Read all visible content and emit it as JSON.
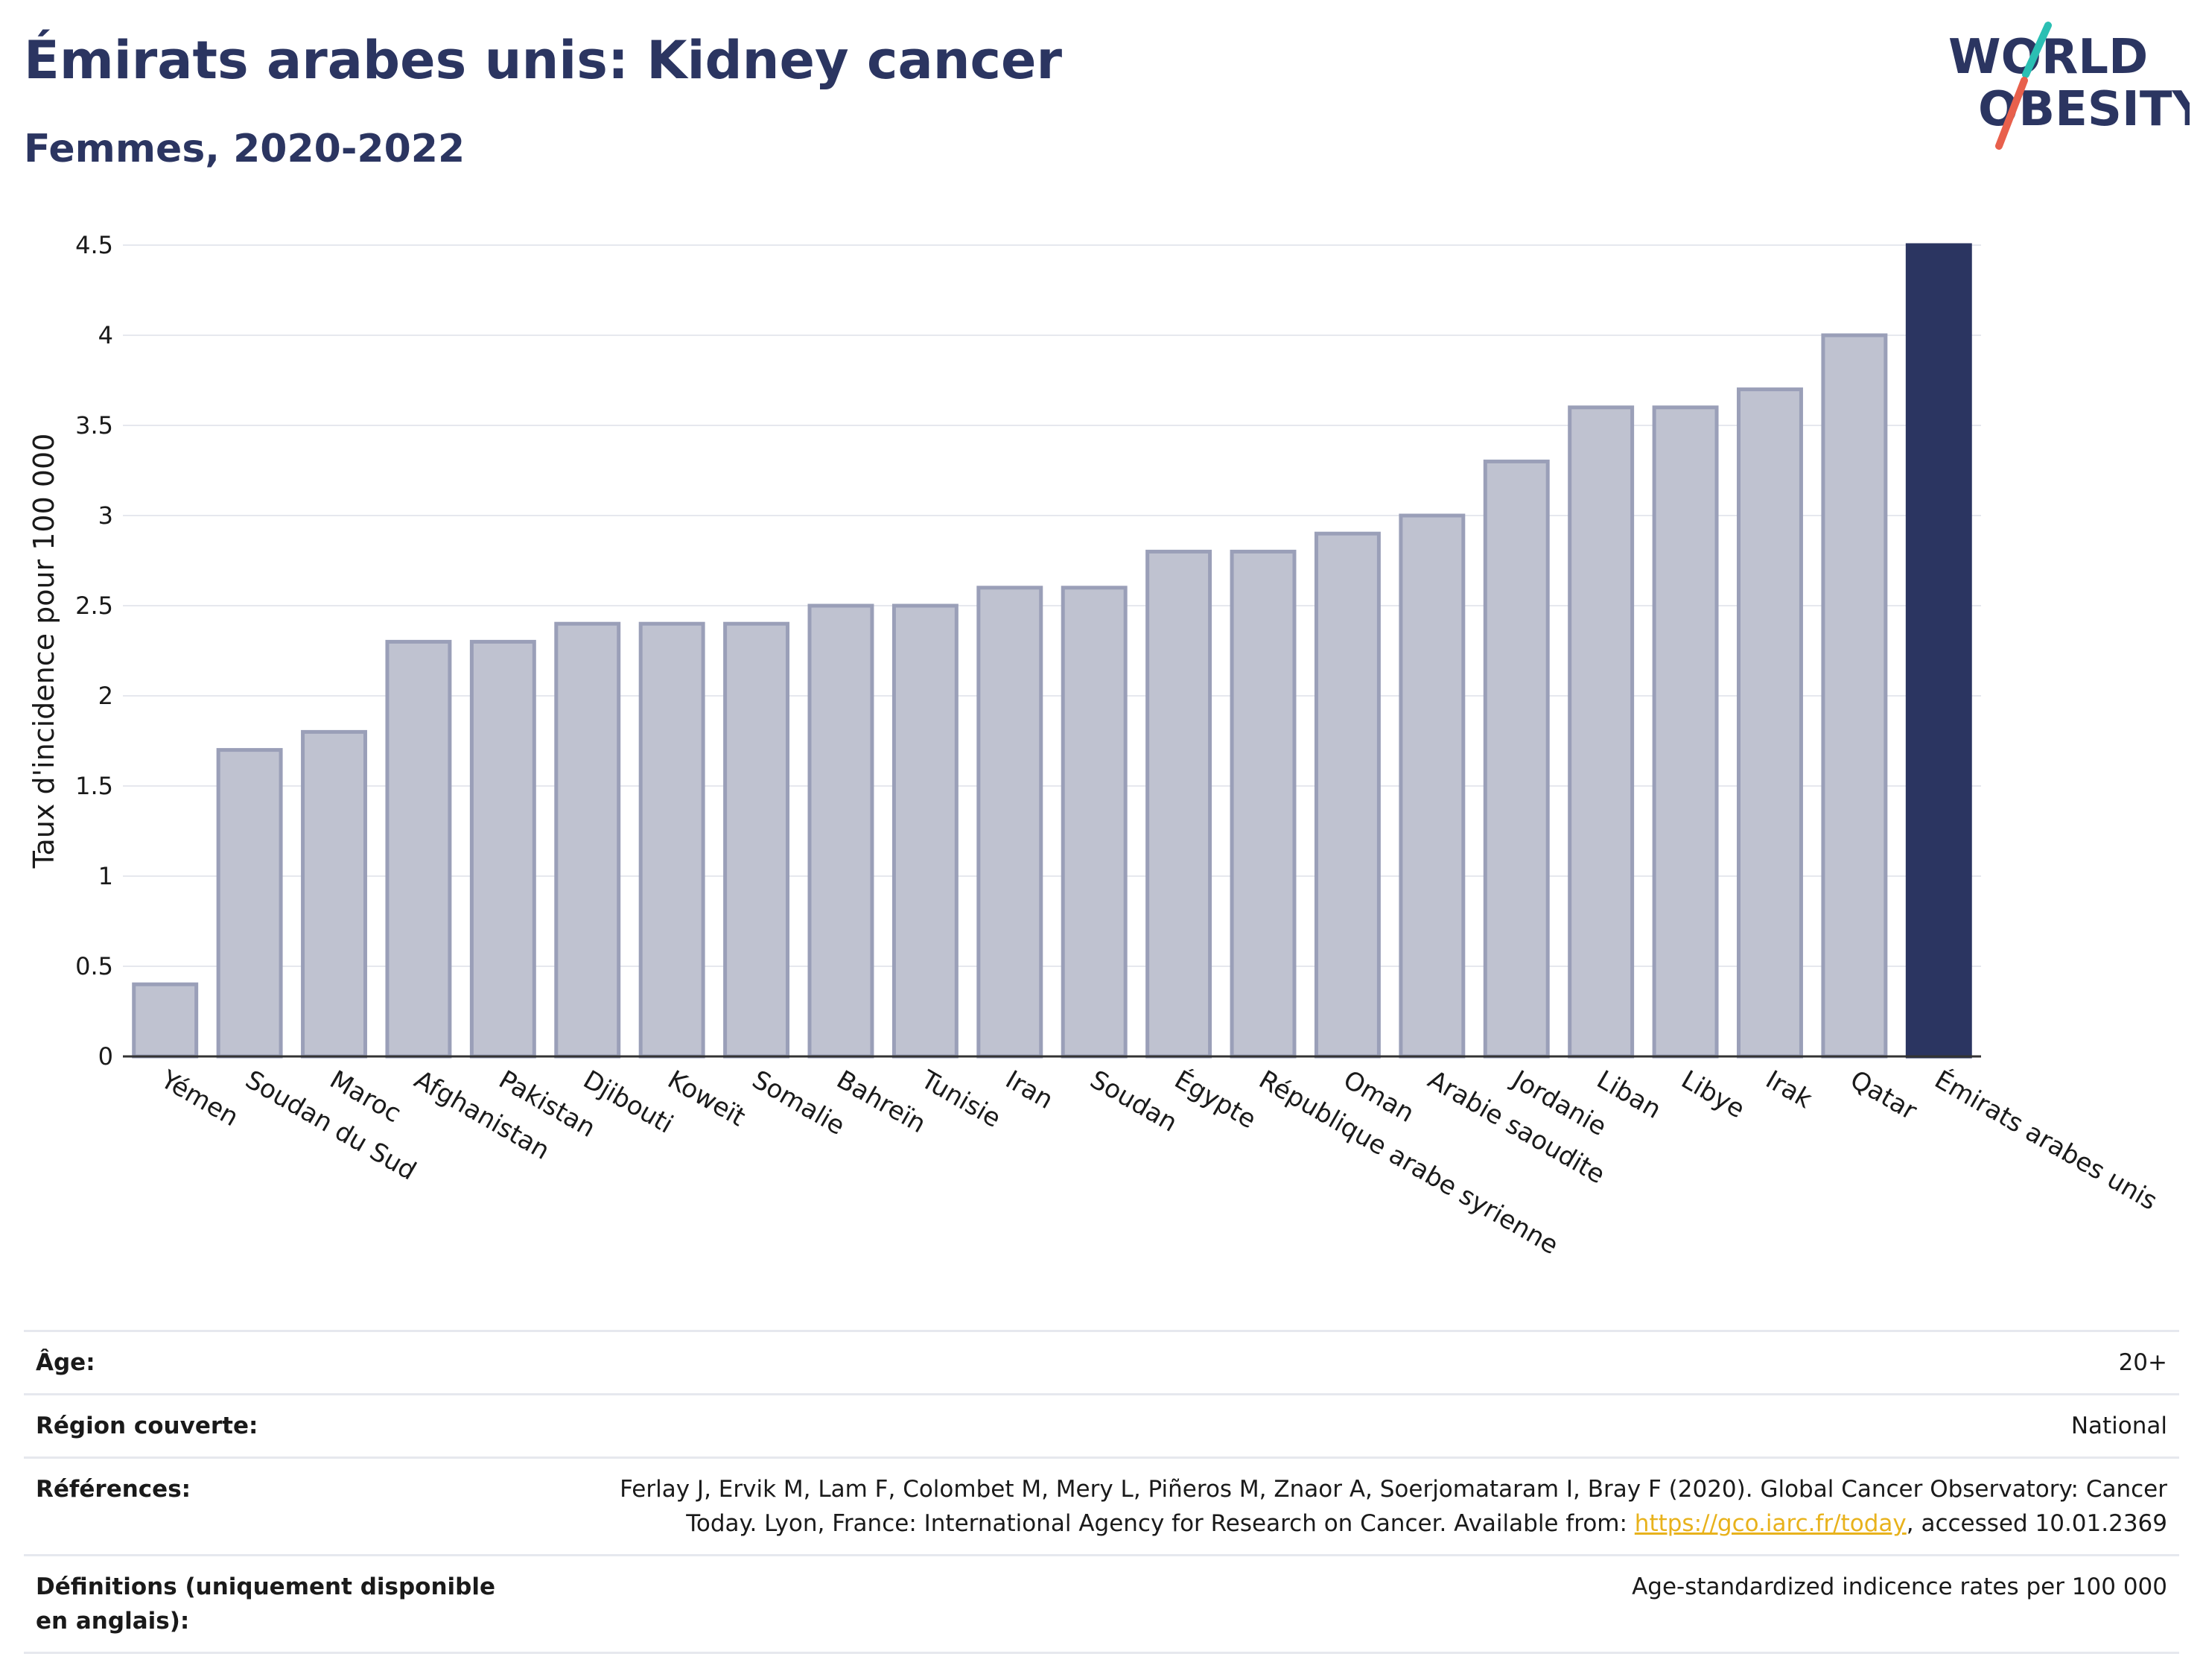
{
  "header": {
    "title": "Émirats arabes unis: Kidney cancer",
    "subtitle": "Femmes, 2020-2022"
  },
  "logo": {
    "line1": "WORLD",
    "line2": "OBESITY",
    "accent_colors": [
      "#2bbfb3",
      "#e8604c"
    ]
  },
  "chart_data": {
    "type": "bar",
    "ylabel": "Taux d'incidence pour 100 000",
    "ylim": [
      0,
      4.5
    ],
    "yticks": [
      {
        "value": 0,
        "label": "0"
      },
      {
        "value": 0.5,
        "label": "0.5"
      },
      {
        "value": 1,
        "label": "1"
      },
      {
        "value": 1.5,
        "label": "1.5"
      },
      {
        "value": 2,
        "label": "2"
      },
      {
        "value": 2.5,
        "label": "2.5"
      },
      {
        "value": 3,
        "label": "3"
      },
      {
        "value": 3.5,
        "label": "3.5"
      },
      {
        "value": 4,
        "label": "4"
      },
      {
        "value": 4.5,
        "label": "4.5"
      }
    ],
    "grid": true,
    "colors": {
      "bar": "#bfc2d0",
      "bar_border": "#9a9fb8",
      "highlight": "#2b3561"
    },
    "categories": [
      "Yémen",
      "Soudan du Sud",
      "Maroc",
      "Afghanistan",
      "Pakistan",
      "Djibouti",
      "Koweït",
      "Somalie",
      "Bahreïn",
      "Tunisie",
      "Iran",
      "Soudan",
      "Égypte",
      "République arabe syrienne",
      "Oman",
      "Arabie saoudite",
      "Jordanie",
      "Liban",
      "Libye",
      "Irak",
      "Qatar",
      "Émirats arabes unis"
    ],
    "values": [
      0.4,
      1.7,
      1.8,
      2.3,
      2.3,
      2.4,
      2.4,
      2.4,
      2.5,
      2.5,
      2.6,
      2.6,
      2.8,
      2.8,
      2.9,
      3.0,
      3.3,
      3.6,
      3.6,
      3.7,
      4.0,
      4.5
    ],
    "highlight": "Émirats arabes unis"
  },
  "meta": {
    "age_label": "Âge:",
    "age_value": "20+",
    "region_label": "Région couverte:",
    "region_value": "National",
    "ref_label": "Références:",
    "ref_text_line1": "Ferlay J, Ervik M, Lam F, Colombet M, Mery L, Piñeros M, Znaor A, Soerjomataram I, Bray F (2020). Global Cancer Observatory: Cancer",
    "ref_text_line2a": "Today. Lyon, France: International Agency for Research on Cancer. Available from: ",
    "ref_link": "https://gco.iarc.fr/today",
    "ref_text_line2b": ", accessed 10.01.2369",
    "def_label": "Définitions (uniquement disponible en anglais):",
    "def_value": "Age-standardized indicence rates per 100 000"
  }
}
